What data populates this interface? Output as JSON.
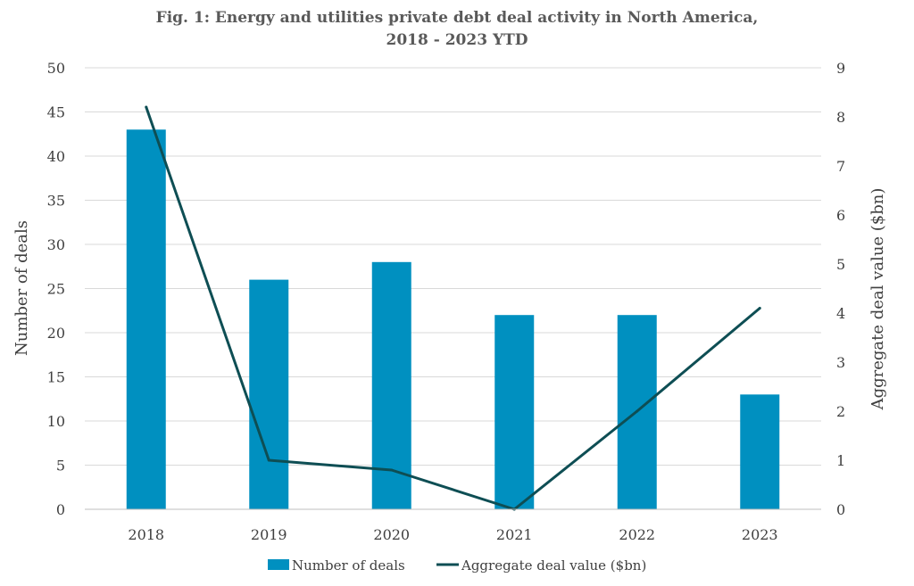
{
  "chart_data": {
    "type": "bar",
    "title_lines": [
      "Fig. 1: Energy and utilities private debt deal activity in North America,",
      "2018 - 2023 YTD"
    ],
    "categories": [
      "2018",
      "2019",
      "2020",
      "2021",
      "2022",
      "2023"
    ],
    "series": [
      {
        "name": "Number of deals",
        "type": "bar",
        "axis": "left",
        "color": "#0090C0",
        "values": [
          43,
          26,
          28,
          22,
          22,
          13
        ]
      },
      {
        "name": "Aggregate deal value ($bn)",
        "type": "line",
        "axis": "right",
        "color": "#0E4E54",
        "values": [
          8.2,
          1.0,
          0.8,
          0.0,
          2.0,
          4.1
        ]
      }
    ],
    "ylabel": "Number of deals",
    "y2label": "Aggregate deal value ($bn)",
    "ylim": [
      0,
      50
    ],
    "y2lim": [
      0,
      9
    ],
    "yticks": [
      "0",
      "5",
      "10",
      "15",
      "20",
      "25",
      "30",
      "35",
      "40",
      "45",
      "50"
    ],
    "y2ticks": [
      "0",
      "1",
      "2",
      "3",
      "4",
      "5",
      "6",
      "7",
      "8",
      "9"
    ],
    "grid": true,
    "legend_position": "bottom"
  }
}
